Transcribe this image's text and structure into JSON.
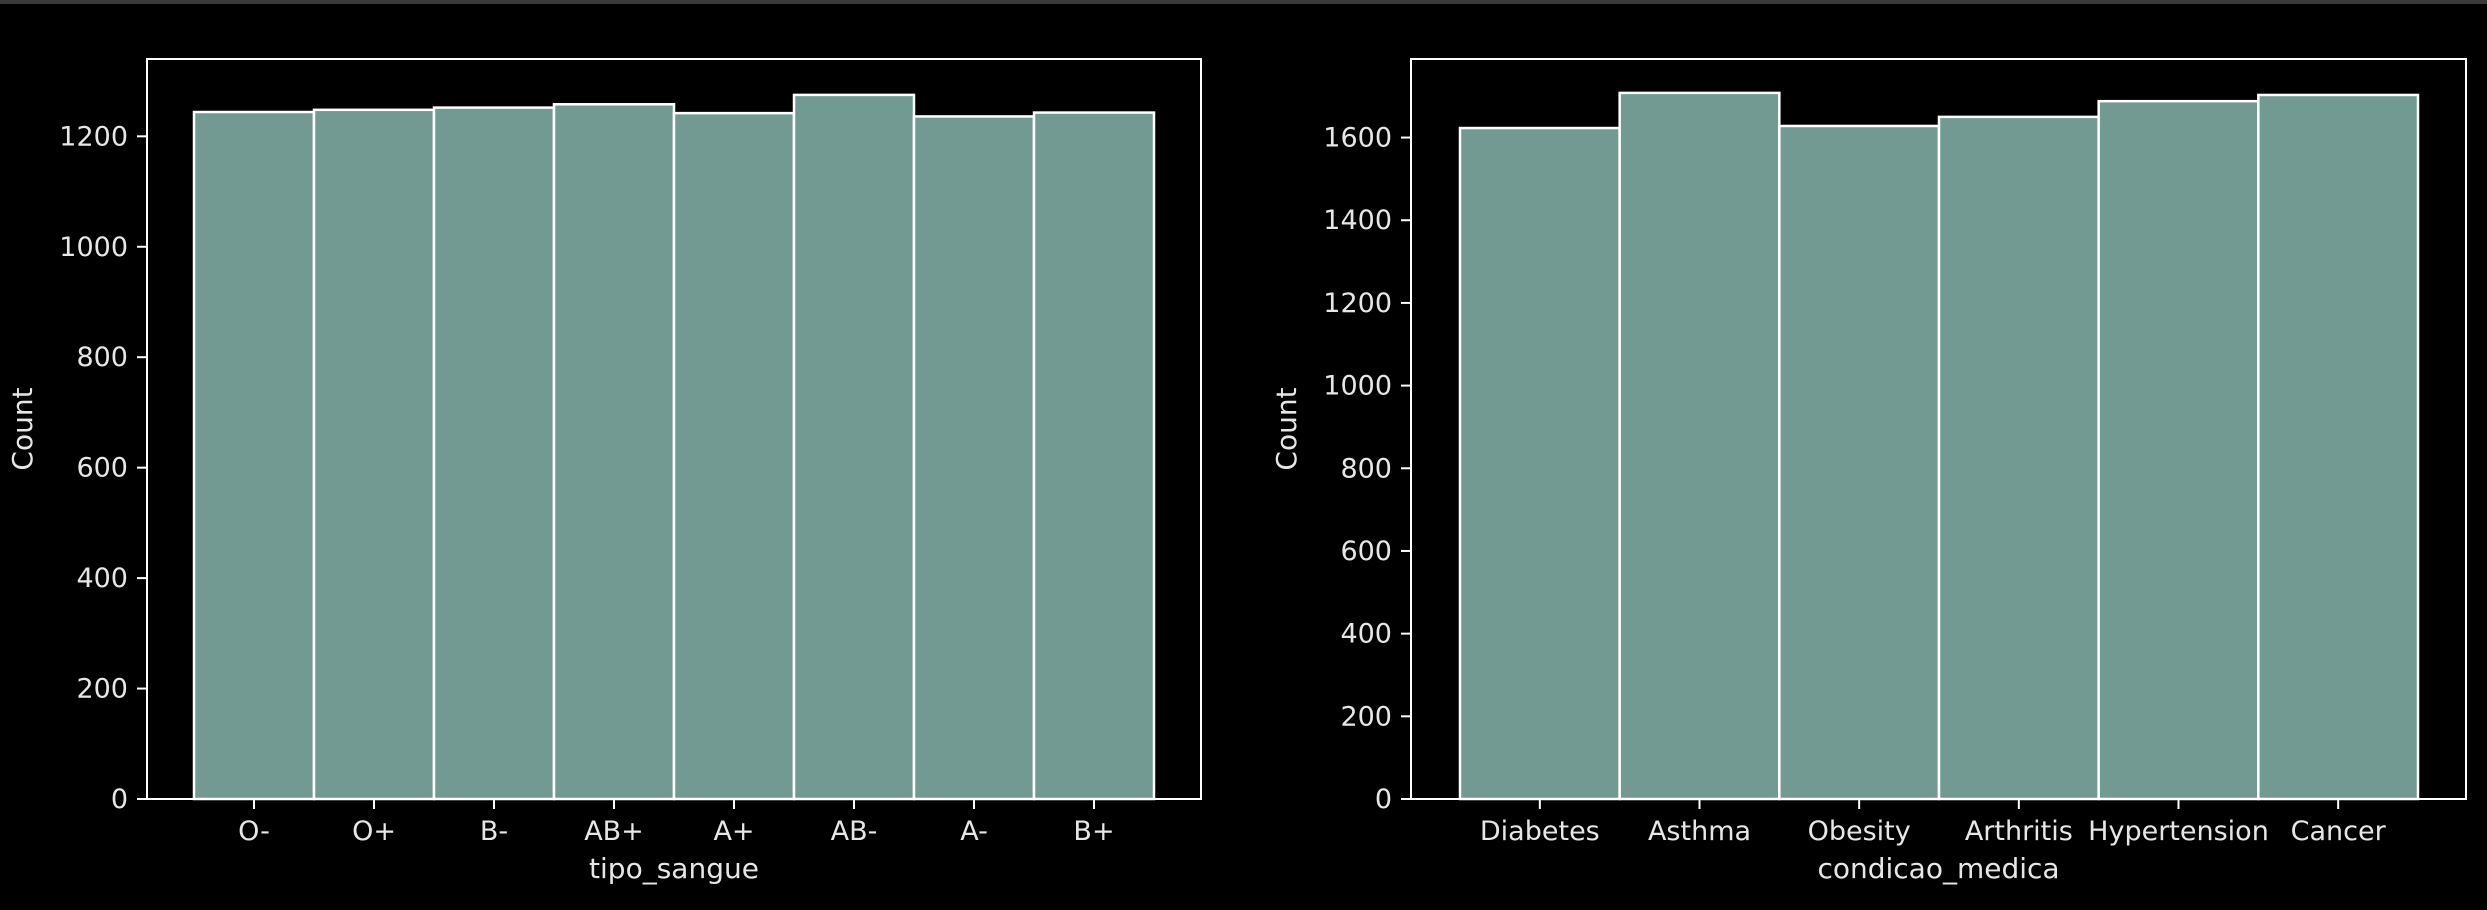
{
  "chart_data": [
    {
      "type": "bar",
      "xlabel": "tipo_sangue",
      "ylabel": "Count",
      "categories": [
        "O-",
        "O+",
        "B-",
        "AB+",
        "A+",
        "AB-",
        "A-",
        "B+"
      ],
      "values": [
        1244,
        1248,
        1252,
        1258,
        1242,
        1275,
        1236,
        1243
      ],
      "ylim": [
        0,
        1340
      ],
      "yticks": [
        0,
        200,
        400,
        600,
        800,
        1000,
        1200
      ],
      "grid": false,
      "bar_color": "#739a92",
      "edge_color": "#ffffff"
    },
    {
      "type": "bar",
      "xlabel": "condicao_medica",
      "ylabel": "Count",
      "categories": [
        "Diabetes",
        "Asthma",
        "Obesity",
        "Arthritis",
        "Hypertension",
        "Cancer"
      ],
      "values": [
        1623,
        1708,
        1628,
        1650,
        1688,
        1703
      ],
      "ylim": [
        0,
        1790
      ],
      "yticks": [
        0,
        200,
        400,
        600,
        800,
        1000,
        1200,
        1400,
        1600
      ],
      "grid": false,
      "bar_color": "#739a92",
      "edge_color": "#ffffff"
    }
  ]
}
